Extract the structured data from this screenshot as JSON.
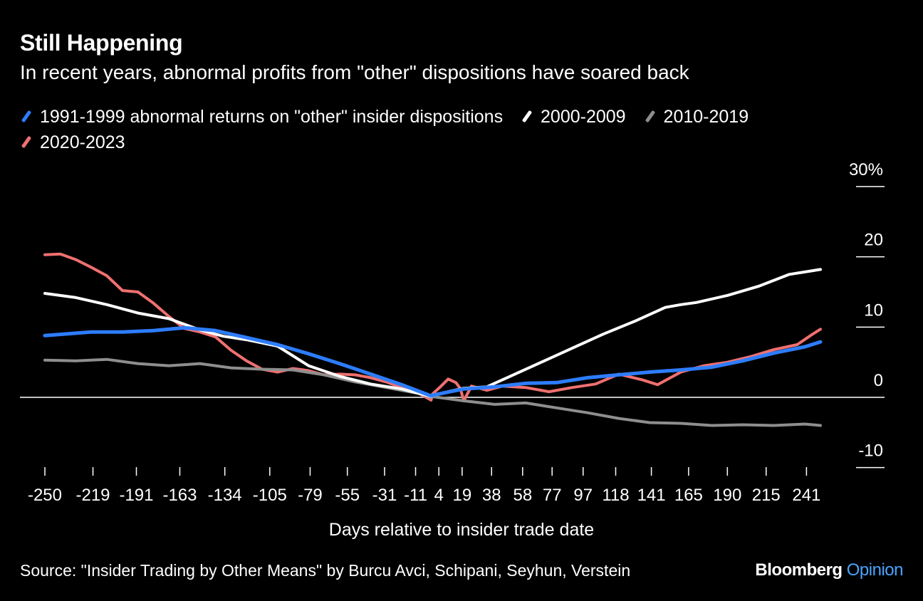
{
  "header": {
    "title": "Still Happening",
    "subtitle": "In recent years, abnormal profits from \"other\" dispositions have soared back"
  },
  "footer": {
    "source": "Source: \"Insider Trading by Other Means\" by Burcu Avci, Schipani, Seyhun, Verstein",
    "brand_main": "Bloomberg",
    "brand_accent": "Opinion"
  },
  "chart_data": {
    "type": "line",
    "xlabel": "Days relative to insider trade date",
    "ylabel": "",
    "xlim": [
      -250,
      250
    ],
    "ylim": [
      -10,
      30
    ],
    "y_ticks": [
      -10,
      0,
      10,
      20,
      30
    ],
    "y_tick_labels": [
      "-10",
      "0",
      "10",
      "20",
      "30%"
    ],
    "x_ticks": [
      -250,
      -219,
      -191,
      -163,
      -134,
      -105,
      -79,
      -55,
      -31,
      -11,
      4,
      19,
      38,
      58,
      77,
      97,
      118,
      141,
      165,
      190,
      215,
      241
    ],
    "grid": false,
    "legend": "top-left",
    "series": [
      {
        "name": "1991-1999 abnormal returns on \"other\" insider dispositions",
        "color": "#2d7dff",
        "x": [
          -250,
          -220,
          -200,
          -180,
          -160,
          -140,
          -120,
          -100,
          -80,
          -60,
          -40,
          -20,
          -1,
          0,
          20,
          40,
          60,
          80,
          100,
          120,
          140,
          160,
          180,
          200,
          220,
          240,
          250
        ],
        "y": [
          8.8,
          9.3,
          9.3,
          9.5,
          9.9,
          9.5,
          8.5,
          7.5,
          6.2,
          4.8,
          3.3,
          1.8,
          0.2,
          0.3,
          1.2,
          1.5,
          2.0,
          2.1,
          2.8,
          3.2,
          3.6,
          3.9,
          4.3,
          5.2,
          6.3,
          7.2,
          7.9
        ]
      },
      {
        "name": "2000-2009",
        "color": "#ffffff",
        "x": [
          -250,
          -230,
          -210,
          -190,
          -170,
          -150,
          -135,
          -120,
          -100,
          -80,
          -60,
          -40,
          -20,
          -1,
          0,
          20,
          35,
          50,
          70,
          90,
          110,
          130,
          150,
          160,
          170,
          190,
          210,
          230,
          250
        ],
        "y": [
          14.8,
          14.2,
          13.2,
          12.0,
          11.2,
          9.6,
          8.7,
          8.2,
          7.3,
          4.5,
          3.0,
          1.9,
          1.2,
          0.1,
          0.3,
          1.3,
          1.5,
          3.0,
          5.0,
          7.0,
          9.0,
          10.8,
          12.8,
          13.2,
          13.5,
          14.5,
          15.8,
          17.5,
          18.2
        ]
      },
      {
        "name": "2010-2019",
        "color": "#8e8e8e",
        "x": [
          -250,
          -230,
          -210,
          -190,
          -170,
          -150,
          -130,
          -110,
          -90,
          -70,
          -50,
          -30,
          -10,
          -1,
          0,
          20,
          40,
          60,
          80,
          100,
          120,
          140,
          160,
          180,
          200,
          220,
          240,
          250
        ],
        "y": [
          5.3,
          5.2,
          5.4,
          4.8,
          4.5,
          4.8,
          4.2,
          4.0,
          3.9,
          3.2,
          2.2,
          1.4,
          0.6,
          0.0,
          0.1,
          -0.5,
          -1.0,
          -0.8,
          -1.5,
          -2.2,
          -3.0,
          -3.6,
          -3.7,
          -4.0,
          -3.9,
          -4.0,
          -3.8,
          -4.0
        ]
      },
      {
        "name": "2020-2023",
        "color": "#f07070",
        "x": [
          -250,
          -240,
          -230,
          -220,
          -210,
          -200,
          -190,
          -180,
          -170,
          -160,
          -150,
          -140,
          -130,
          -120,
          -110,
          -100,
          -90,
          -80,
          -70,
          -60,
          -50,
          -40,
          -30,
          -20,
          -10,
          -1,
          0,
          5,
          10,
          15,
          18,
          20,
          25,
          35,
          45,
          60,
          75,
          90,
          105,
          120,
          135,
          145,
          160,
          175,
          190,
          205,
          220,
          235,
          245,
          250
        ],
        "y": [
          20.3,
          20.4,
          19.6,
          18.5,
          17.3,
          15.2,
          15.0,
          13.4,
          11.5,
          9.8,
          9.3,
          8.6,
          6.7,
          5.2,
          4.0,
          3.6,
          4.1,
          3.8,
          3.2,
          3.3,
          3.2,
          2.8,
          2.2,
          1.4,
          0.7,
          -0.4,
          0.5,
          1.5,
          2.6,
          2.1,
          1.2,
          -0.5,
          1.6,
          1.0,
          1.6,
          1.4,
          0.8,
          1.4,
          1.9,
          3.3,
          2.5,
          1.8,
          3.6,
          4.5,
          5.0,
          5.8,
          6.8,
          7.5,
          9.0,
          9.7
        ]
      }
    ]
  }
}
